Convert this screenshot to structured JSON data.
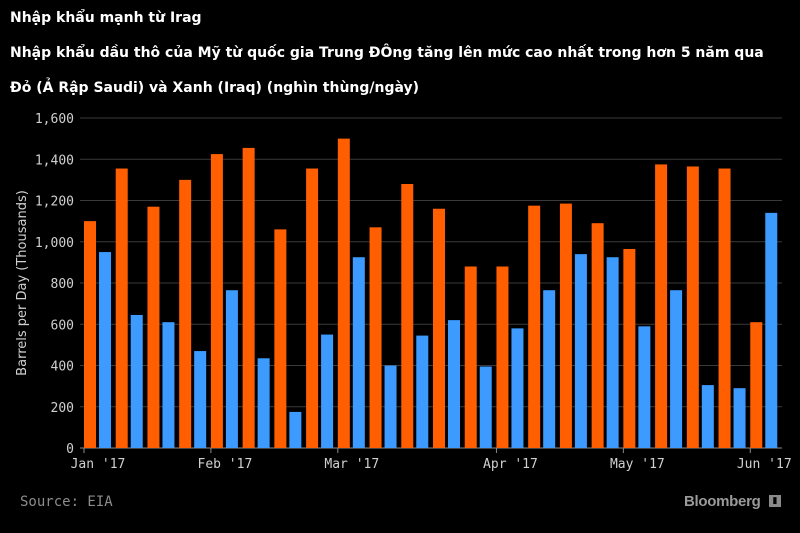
{
  "header": {
    "title": "Nhập khẩu mạnh từ Irag",
    "subtitle": "Nhập khẩu dầu thô của Mỹ từ quốc gia Trung ĐÔng tăng lên mức cao nhất trong hơn 5 năm qua",
    "legend_note": "Đỏ (Ả Rập Saudi) và Xanh (Iraq) (nghìn thùng/ngày)"
  },
  "footer": {
    "source": "Source: EIA",
    "brand": "Bloomberg",
    "brand_icon": "bloomberg-chart-icon"
  },
  "chart_data": {
    "type": "bar",
    "ylabel": "Barrels per Day (Thousands)",
    "ylim": [
      0,
      1600
    ],
    "yticks": [
      "0",
      "200",
      "400",
      "600",
      "800",
      "1,000",
      "1,200",
      "1,400",
      "1,600"
    ],
    "ytick_values": [
      0,
      200,
      400,
      600,
      800,
      1000,
      1200,
      1400,
      1600
    ],
    "xtick_labels": [
      {
        "label": "Jan '17",
        "index": 0
      },
      {
        "label": "Feb '17",
        "index": 4
      },
      {
        "label": "Mar '17",
        "index": 8
      },
      {
        "label": "Apr '17",
        "index": 13
      },
      {
        "label": "May '17",
        "index": 17
      },
      {
        "label": "Jun '17",
        "index": 21
      }
    ],
    "grid": true,
    "series": [
      {
        "color": "#ff5f00",
        "values": [
          1100,
          1355,
          1170,
          1300,
          1425,
          1455,
          1060,
          1355,
          1500,
          1070,
          1280,
          1160,
          880,
          880,
          1175,
          1185,
          1090,
          965,
          1375,
          1365,
          1355,
          610
        ]
      },
      {
        "color": "#3d9bff",
        "values": [
          950,
          645,
          610,
          470,
          765,
          435,
          175,
          550,
          925,
          400,
          545,
          620,
          395,
          580,
          765,
          940,
          925,
          590,
          765,
          305,
          290,
          1140
        ]
      }
    ]
  }
}
